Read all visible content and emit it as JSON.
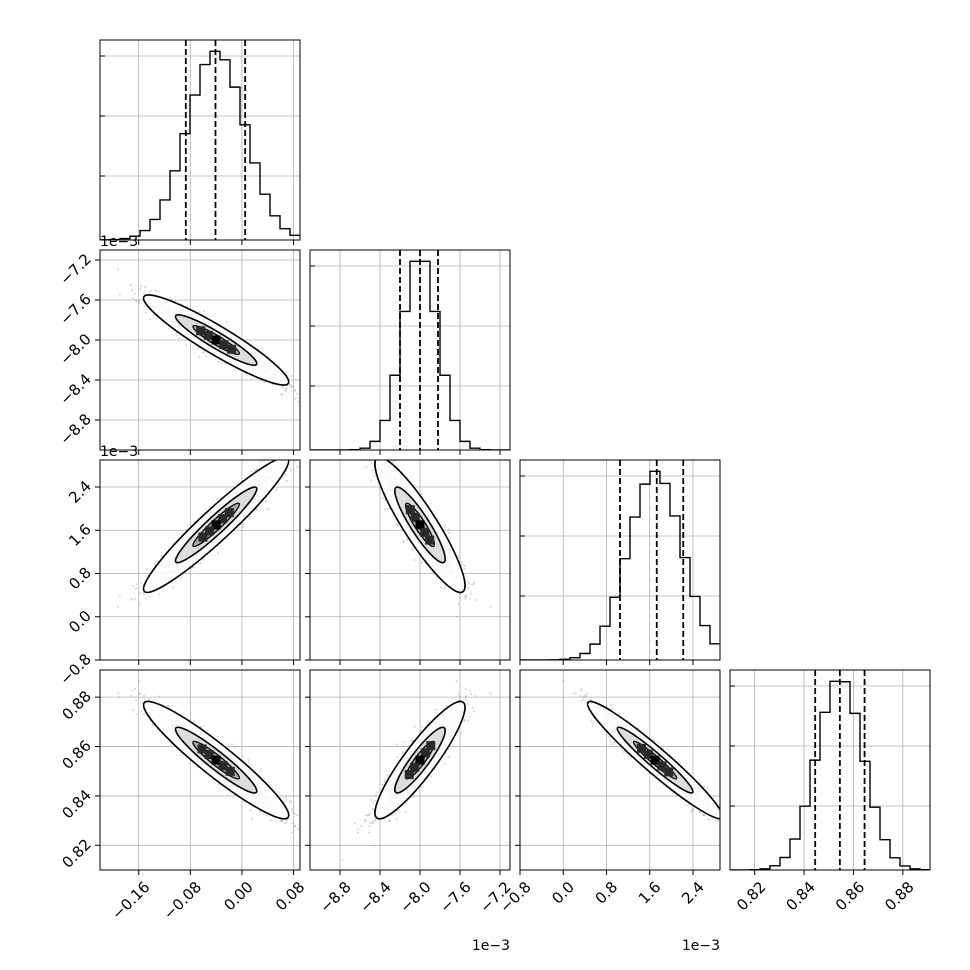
{
  "chart_data": {
    "type": "corner",
    "parameters": [
      {
        "range": [
          -0.22,
          0.09
        ],
        "ticks": [
          -0.16,
          -0.08,
          0.0,
          0.08
        ],
        "tick_labels": [
          "−0.16",
          "−0.08",
          "0.00",
          "0.08"
        ],
        "offset_label": "",
        "mean": -0.04,
        "sigma": 0.045,
        "quantiles": [
          -0.087,
          -0.041,
          0.005
        ]
      },
      {
        "range": [
          -0.0091,
          -0.0071
        ],
        "ticks": [
          -0.0088,
          -0.0084,
          -0.008,
          -0.0076,
          -0.0072
        ],
        "tick_labels": [
          "−8.8",
          "−8.4",
          "−8.0",
          "−7.6",
          "−7.2"
        ],
        "offset_label": "1e−3",
        "mean": -0.008,
        "sigma": 0.00018,
        "quantiles": [
          -0.0082,
          -0.008,
          -0.00782
        ]
      },
      {
        "range": [
          -0.0008,
          0.0029
        ],
        "ticks": [
          -0.0008,
          0.0,
          0.0008,
          0.0016,
          0.0024
        ],
        "tick_labels": [
          "−0.8",
          "0.0",
          "0.8",
          "1.6",
          "2.4"
        ],
        "offset_label": "1e−3",
        "mean": 0.0017,
        "sigma": 0.0005,
        "quantiles": [
          0.00105,
          0.00173,
          0.00222
        ]
      },
      {
        "range": [
          0.81,
          0.891
        ],
        "ticks": [
          0.82,
          0.84,
          0.86,
          0.88
        ],
        "tick_labels": [
          "0.82",
          "0.84",
          "0.86",
          "0.88"
        ],
        "offset_label": "",
        "mean": 0.8545,
        "sigma": 0.0095,
        "quantiles": [
          0.8445,
          0.8545,
          0.8645
        ]
      }
    ],
    "correlations": {
      "1-0": -0.93,
      "2-0": 0.95,
      "2-1": -0.9,
      "3-0": -0.94,
      "3-1": 0.9,
      "3-2": -0.96
    },
    "histogram_bins": 20,
    "quantile_levels": [
      0.16,
      0.5,
      0.84
    ],
    "contour_levels_sigma": [
      1,
      2
    ],
    "grid": true,
    "colors": {
      "lines": "#000000",
      "grid": "#b0b0b0",
      "points": "#888888",
      "density": "#000000"
    }
  }
}
